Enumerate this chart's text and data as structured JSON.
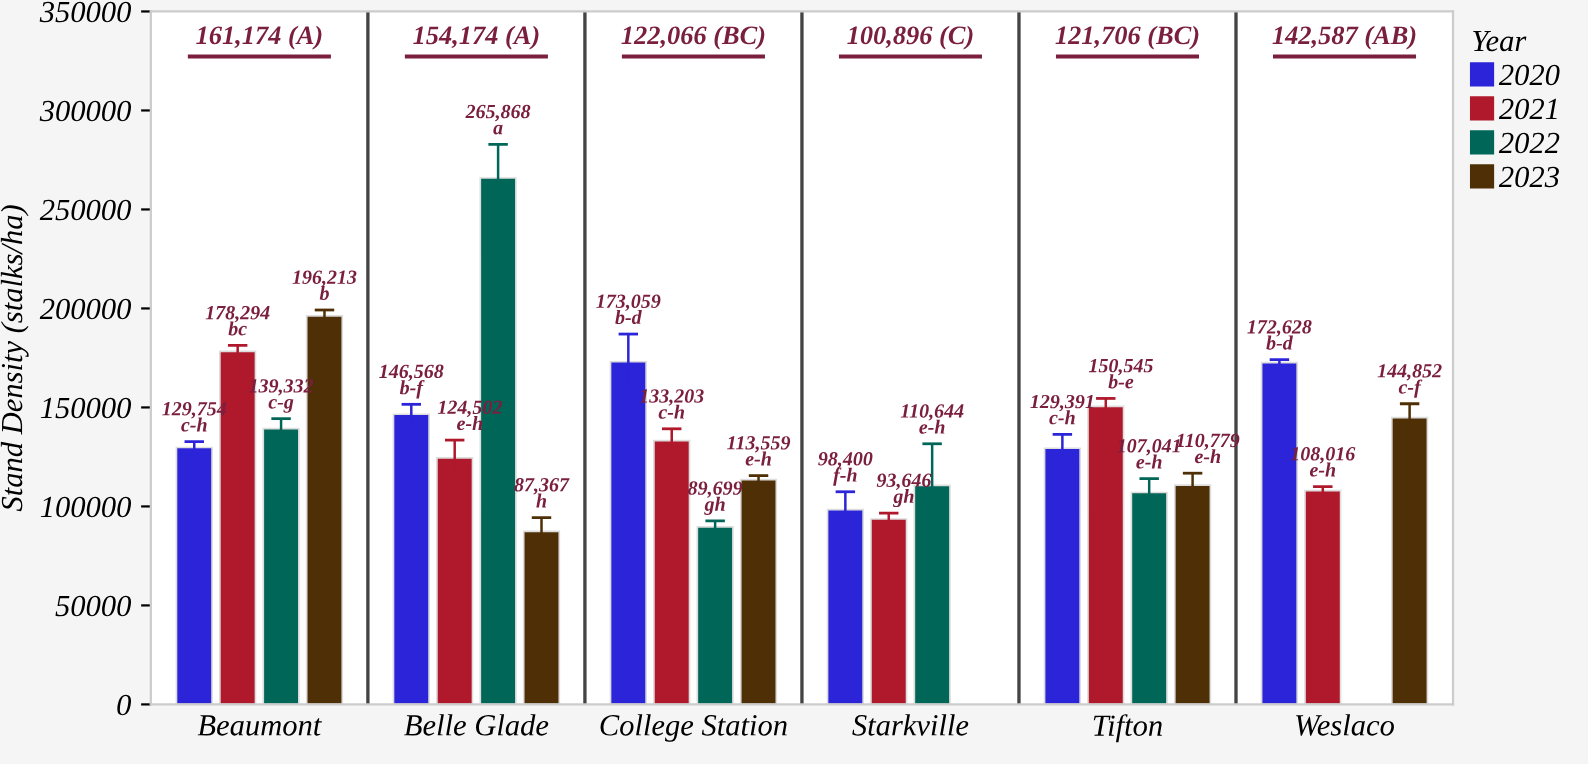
{
  "chart_data": {
    "type": "bar",
    "ylabel": "Stand Density (stalks/ha)",
    "legend_title": "Year",
    "legend": "right",
    "grid": "x",
    "categories": [
      "Beaumont",
      "Belle Glade",
      "College Station",
      "Starkville",
      "Tifton",
      "Weslaco"
    ],
    "ylim": [
      0,
      350000
    ],
    "yticks": [
      0,
      50000,
      100000,
      150000,
      200000,
      250000,
      300000,
      350000
    ],
    "annotations": [
      "161,174 (A)",
      "154,174 (A)",
      "122,066 (BC)",
      "100,896 (C)",
      "121,706 (BC)",
      "142,587 (AB)"
    ],
    "series": [
      {
        "name": "2020",
        "color": "#2b24d8",
        "values": [
          129754,
          146568,
          173059,
          98400,
          129391,
          172628
        ],
        "errors": [
          3000,
          5000,
          14000,
          9000,
          7000,
          1500
        ],
        "value_labels": [
          "129,754\nc-h",
          "146,568\nb-f",
          "173,059\nb-d",
          "98,400\nf-h",
          "129,391\nc-h",
          "172,628\nb-d"
        ]
      },
      {
        "name": "2021",
        "color": "#b0182c",
        "values": [
          178294,
          124502,
          133203,
          93646,
          150545,
          108016
        ],
        "errors": [
          3000,
          9000,
          6000,
          3000,
          4000,
          2000
        ],
        "value_labels": [
          "178,294\nbc",
          "124,502\ne-h",
          "133,203\nc-h",
          "93,646\ngh",
          "150,545\nb-e",
          "108,016\ne-h"
        ]
      },
      {
        "name": "2022",
        "color": "#006658",
        "values": [
          139332,
          265868,
          89699,
          110644,
          107041,
          null
        ],
        "errors": [
          5000,
          17000,
          3000,
          21000,
          7000,
          null
        ],
        "value_labels": [
          "139,332\nc-g",
          "265,868\na",
          "89,699\ngh",
          "110,644\ne-h",
          "107,041\ne-h",
          null
        ]
      },
      {
        "name": "2023",
        "color": "#4f2f06",
        "values": [
          196213,
          87367,
          113559,
          null,
          110779,
          144852
        ],
        "errors": [
          3000,
          7000,
          2000,
          null,
          6000,
          7000
        ],
        "value_labels": [
          "196,213\nb",
          "87,367\nh",
          "113,559\ne-h",
          null,
          "110,779\ne-h",
          "144,852\nc-f"
        ]
      }
    ]
  }
}
